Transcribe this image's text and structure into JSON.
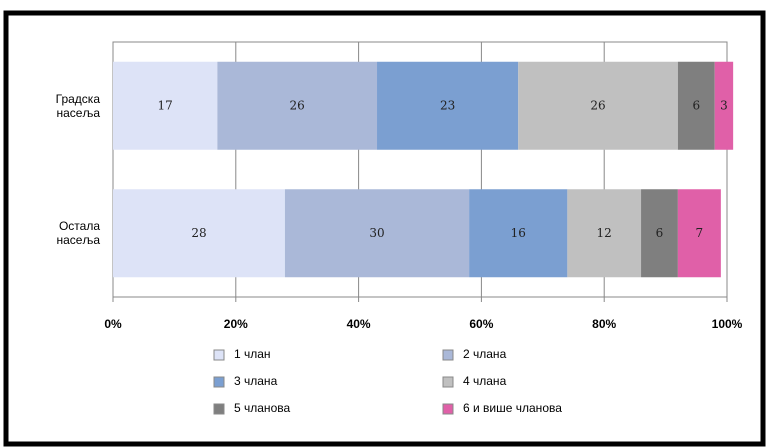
{
  "chart_data": {
    "type": "stacked_barh",
    "categories": [
      "Градска насеља",
      "Остала насеља"
    ],
    "series": [
      {
        "name": "1 члан",
        "color": "#dde3f7",
        "values": [
          17,
          28
        ]
      },
      {
        "name": "2 члана",
        "color": "#aab8d8",
        "values": [
          26,
          30
        ]
      },
      {
        "name": "3 члана",
        "color": "#7b9fd1",
        "values": [
          23,
          16
        ]
      },
      {
        "name": "4 члана",
        "color": "#c0c0c0",
        "values": [
          26,
          12
        ]
      },
      {
        "name": "5 чланова",
        "color": "#7f7f7f",
        "values": [
          6,
          6
        ]
      },
      {
        "name": "6 и више чланова",
        "color": "#e060a8",
        "values": [
          3,
          7
        ]
      }
    ],
    "xlim": [
      0,
      100
    ],
    "xticks": [
      {
        "value": 0,
        "label": "0%"
      },
      {
        "value": 20,
        "label": "20%"
      },
      {
        "value": 40,
        "label": "40%"
      },
      {
        "value": 60,
        "label": "60%"
      },
      {
        "value": 80,
        "label": "80%"
      },
      {
        "value": 100,
        "label": "100%"
      }
    ],
    "grid": true
  }
}
